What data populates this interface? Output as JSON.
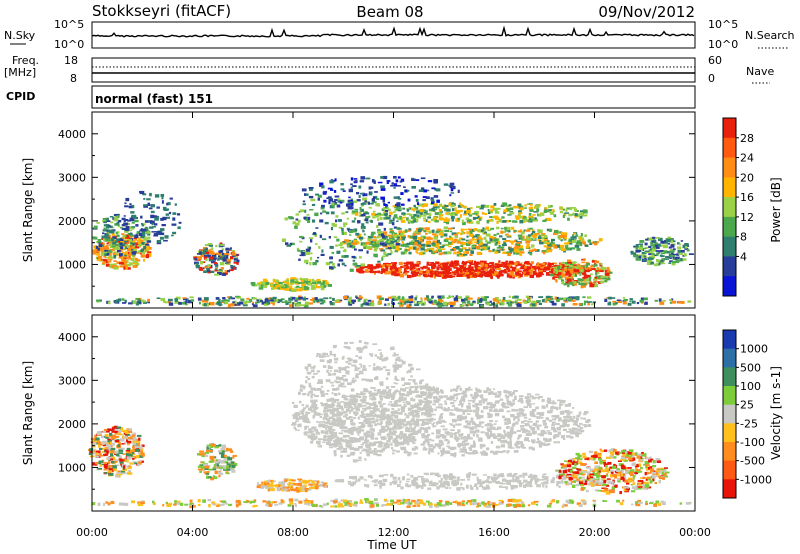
{
  "header": {
    "station": "Stokkseyri (fitACF)",
    "beam": "Beam 08",
    "date": "09/Nov/2012"
  },
  "noise_panel": {
    "left_label": "N.Sky",
    "right_label": "N.Search",
    "y_ticks": [
      "10^5",
      "10^0"
    ]
  },
  "freq_panel": {
    "left_label_1": "Freq.",
    "left_label_2": "[MHz]",
    "left_ticks": [
      "18",
      "8"
    ],
    "right_label": "Nave",
    "right_ticks": [
      "60",
      "0"
    ]
  },
  "cpid": {
    "label": "CPID",
    "mode": "normal (fast) 151"
  },
  "chart_data": [
    {
      "type": "heatmap",
      "panel": "power",
      "ylabel": "Slant Range [km]",
      "xlabel": "Time UT",
      "x_ticks": [
        "00:00",
        "04:00",
        "08:00",
        "12:00",
        "16:00",
        "20:00",
        "00:00"
      ],
      "y_ticks": [
        1000,
        2000,
        3000,
        4000
      ],
      "colorbar": {
        "label": "Power [dB]",
        "ticks": [
          "28",
          "24",
          "20",
          "16",
          "12",
          "8",
          "4"
        ],
        "colors": [
          "#e8200c",
          "#ff5a0f",
          "#ff8c14",
          "#ffb400",
          "#9ad146",
          "#4ca84c",
          "#2f7f6e",
          "#283c9a",
          "#0a14d6"
        ]
      }
    },
    {
      "type": "heatmap",
      "panel": "velocity",
      "ylabel": "Slant Range [km]",
      "xlabel": "Time UT",
      "x_ticks": [
        "00:00",
        "04:00",
        "08:00",
        "12:00",
        "16:00",
        "20:00",
        "00:00"
      ],
      "y_ticks": [
        1000,
        2000,
        3000,
        4000
      ],
      "colorbar": {
        "label": "Velocity [m s-1]",
        "ticks": [
          "1000",
          "500",
          "100",
          "25",
          "-25",
          "-100",
          "-500",
          "-1000"
        ],
        "colors": [
          "#1a3ab0",
          "#2e6fa8",
          "#3f8f5c",
          "#7ccc3c",
          "#c8c8c4",
          "#ffc01e",
          "#ff8c1e",
          "#ff5a14",
          "#e8140a"
        ]
      }
    }
  ],
  "footer": {
    "xlabel": "Time UT"
  }
}
